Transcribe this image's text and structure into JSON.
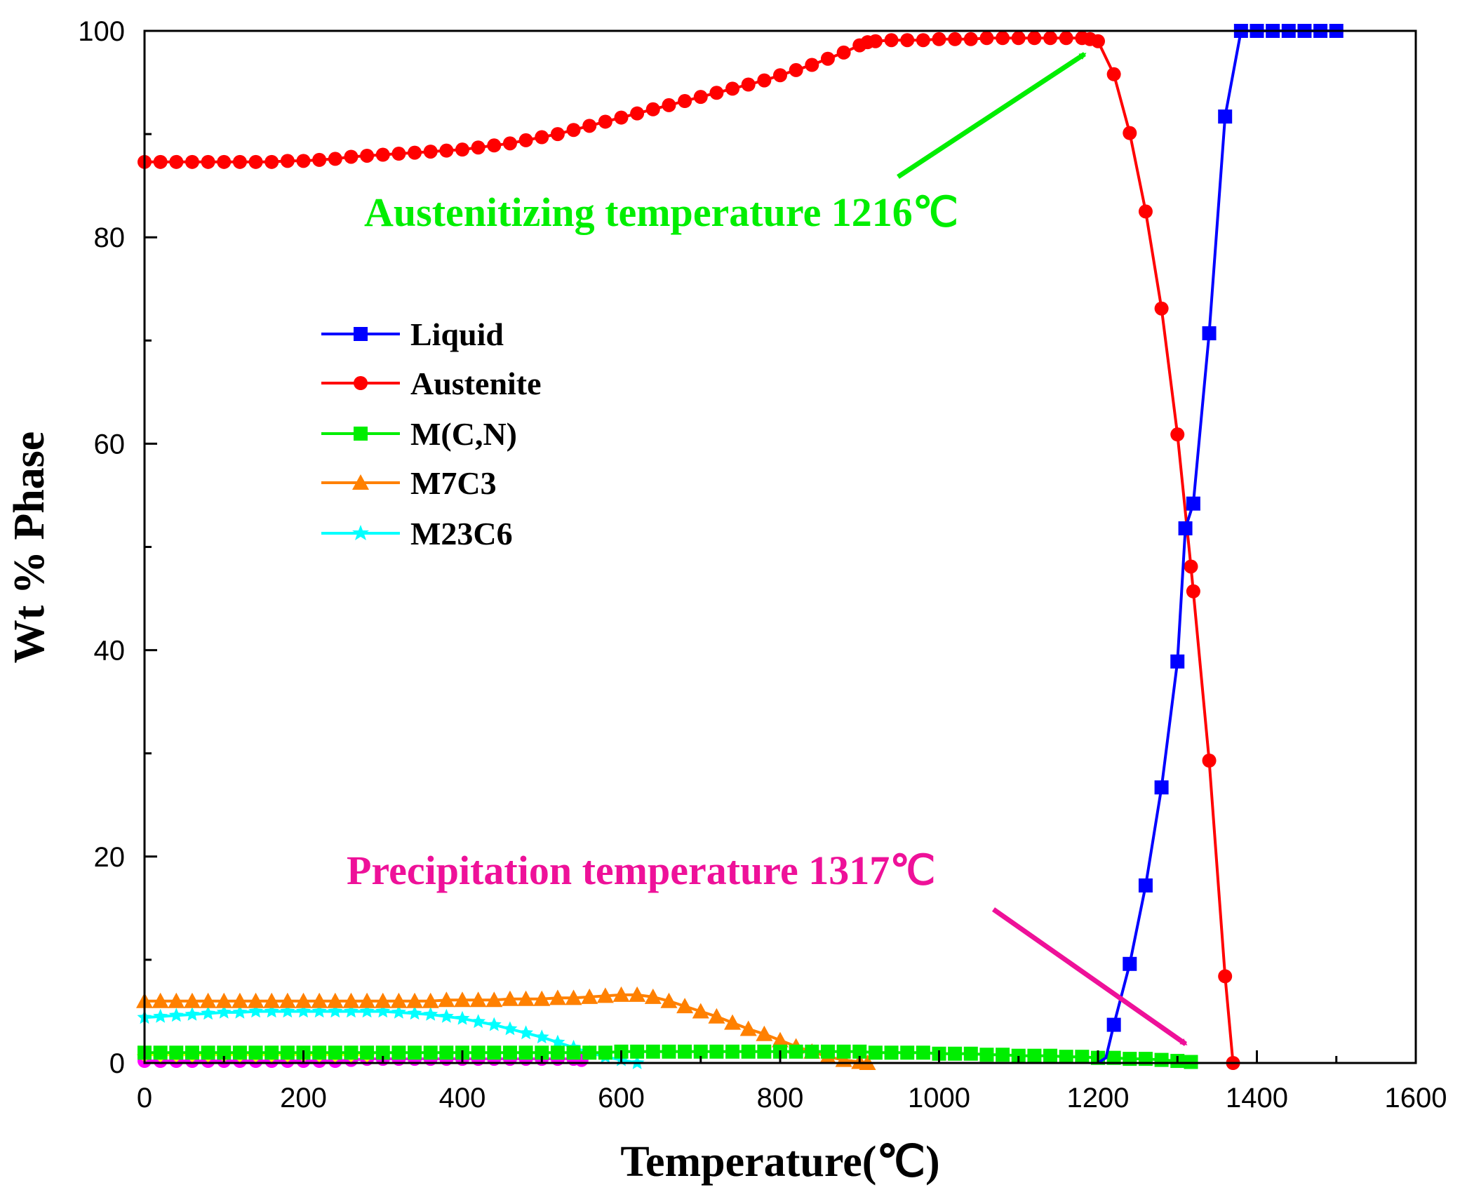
{
  "chart_data": {
    "type": "line",
    "title": "",
    "xlabel": "Temperature(℃)",
    "ylabel": "Wt % Phase",
    "xlim": [
      0,
      1600
    ],
    "ylim": [
      0,
      100
    ],
    "xticks": [
      "0",
      "200",
      "400",
      "600",
      "800",
      "1000",
      "1200",
      "1400",
      "1600"
    ],
    "yticks": [
      "0",
      "20",
      "40",
      "60",
      "80",
      "100"
    ],
    "legend_position": "middle-left",
    "series": [
      {
        "name": "Liquid",
        "color": "#0000ff",
        "marker": "square",
        "x": [
          1200,
          1210,
          1220,
          1240,
          1260,
          1280,
          1300,
          1310,
          1320,
          1340,
          1360,
          1380,
          1400,
          1420,
          1440,
          1460,
          1480,
          1500
        ],
        "y": [
          0,
          0.5,
          3.7,
          9.6,
          17.2,
          26.7,
          38.9,
          51.8,
          54.2,
          70.7,
          91.7,
          100,
          100,
          100,
          100,
          100,
          100,
          100
        ],
        "markers_from": 2
      },
      {
        "name": "Austenite",
        "color": "#ff0000",
        "marker": "circle",
        "x": [
          0,
          20,
          40,
          60,
          80,
          100,
          120,
          140,
          160,
          180,
          200,
          220,
          240,
          260,
          280,
          300,
          320,
          340,
          360,
          380,
          400,
          420,
          440,
          460,
          480,
          500,
          520,
          540,
          560,
          580,
          600,
          620,
          640,
          660,
          680,
          700,
          720,
          740,
          760,
          780,
          800,
          820,
          840,
          860,
          880,
          900,
          910,
          920,
          940,
          960,
          980,
          1000,
          1020,
          1040,
          1060,
          1080,
          1100,
          1120,
          1140,
          1160,
          1180,
          1190,
          1200,
          1220,
          1240,
          1260,
          1280,
          1300,
          1317,
          1320,
          1340,
          1360,
          1370
        ],
        "y": [
          87.3,
          87.3,
          87.3,
          87.3,
          87.3,
          87.3,
          87.3,
          87.3,
          87.3,
          87.4,
          87.4,
          87.5,
          87.6,
          87.8,
          87.9,
          88.0,
          88.1,
          88.2,
          88.3,
          88.4,
          88.5,
          88.7,
          88.9,
          89.1,
          89.4,
          89.7,
          90.0,
          90.4,
          90.8,
          91.2,
          91.6,
          92.0,
          92.4,
          92.8,
          93.2,
          93.6,
          94.0,
          94.4,
          94.8,
          95.2,
          95.7,
          96.2,
          96.7,
          97.3,
          97.9,
          98.6,
          98.9,
          99.0,
          99.1,
          99.1,
          99.1,
          99.2,
          99.2,
          99.2,
          99.3,
          99.3,
          99.3,
          99.3,
          99.3,
          99.3,
          99.3,
          99.2,
          99.0,
          95.8,
          90.1,
          82.5,
          73.1,
          60.9,
          48.1,
          45.7,
          29.3,
          8.4,
          0
        ],
        "markers_from": 0
      },
      {
        "name": "M(C,N)",
        "color": "#00ee00",
        "marker": "square",
        "x": [
          0,
          20,
          40,
          60,
          80,
          100,
          120,
          140,
          160,
          180,
          200,
          220,
          240,
          260,
          280,
          300,
          320,
          340,
          360,
          380,
          400,
          420,
          440,
          460,
          480,
          500,
          520,
          540,
          560,
          580,
          600,
          620,
          640,
          660,
          680,
          700,
          720,
          740,
          760,
          780,
          800,
          820,
          840,
          860,
          880,
          900,
          920,
          940,
          960,
          980,
          1000,
          1020,
          1040,
          1060,
          1080,
          1100,
          1120,
          1140,
          1160,
          1180,
          1200,
          1220,
          1240,
          1260,
          1280,
          1300,
          1317
        ],
        "y": [
          1.0,
          1.0,
          1.0,
          1.0,
          1.0,
          1.0,
          1.0,
          1.0,
          1.0,
          1.0,
          1.0,
          1.0,
          1.0,
          1.0,
          1.0,
          1.0,
          1.0,
          1.0,
          1.0,
          1.0,
          1.0,
          1.0,
          1.0,
          1.0,
          1.0,
          1.0,
          1.0,
          1.0,
          1.0,
          1.0,
          1.1,
          1.1,
          1.1,
          1.1,
          1.1,
          1.1,
          1.1,
          1.1,
          1.1,
          1.1,
          1.1,
          1.1,
          1.1,
          1.1,
          1.1,
          1.1,
          1.0,
          1.0,
          1.0,
          1.0,
          0.9,
          0.9,
          0.9,
          0.8,
          0.8,
          0.7,
          0.7,
          0.7,
          0.6,
          0.6,
          0.5,
          0.5,
          0.4,
          0.4,
          0.3,
          0.2,
          0.1
        ],
        "markers_from": 0
      },
      {
        "name": "M7C3",
        "color": "#ff8000",
        "marker": "triangle",
        "x": [
          0,
          20,
          40,
          60,
          80,
          100,
          120,
          140,
          160,
          180,
          200,
          220,
          240,
          260,
          280,
          300,
          320,
          340,
          360,
          380,
          400,
          420,
          440,
          460,
          480,
          500,
          520,
          540,
          560,
          580,
          600,
          620,
          640,
          660,
          680,
          700,
          720,
          740,
          760,
          780,
          800,
          820,
          840,
          860,
          880,
          900,
          910
        ],
        "y": [
          6.0,
          6.0,
          6.0,
          6.0,
          6.0,
          6.0,
          6.0,
          6.0,
          6.0,
          6.0,
          6.0,
          6.0,
          6.0,
          6.0,
          6.0,
          6.0,
          6.0,
          6.0,
          6.0,
          6.1,
          6.1,
          6.1,
          6.1,
          6.2,
          6.2,
          6.2,
          6.3,
          6.3,
          6.4,
          6.5,
          6.6,
          6.6,
          6.4,
          6.0,
          5.5,
          5.0,
          4.5,
          3.9,
          3.3,
          2.8,
          2.2,
          1.6,
          1.1,
          0.6,
          0.3,
          0.1,
          0
        ],
        "markers_from": 0
      },
      {
        "name": "M23C6",
        "color": "#00ffff",
        "marker": "star",
        "x": [
          0,
          20,
          40,
          60,
          80,
          100,
          120,
          140,
          160,
          180,
          200,
          220,
          240,
          260,
          280,
          300,
          320,
          340,
          360,
          380,
          400,
          420,
          440,
          460,
          480,
          500,
          520,
          540,
          560,
          580,
          600,
          620
        ],
        "y": [
          4.4,
          4.5,
          4.6,
          4.7,
          4.8,
          4.9,
          4.9,
          5.0,
          5.0,
          5.0,
          5.0,
          5.0,
          5.0,
          5.0,
          5.0,
          5.0,
          4.9,
          4.8,
          4.7,
          4.5,
          4.3,
          4.0,
          3.7,
          3.3,
          2.9,
          2.5,
          2.0,
          1.5,
          1.0,
          0.6,
          0.3,
          0
        ],
        "markers_from": 0
      },
      {
        "name": "",
        "color": "#ffff00",
        "marker": "diamond",
        "in_legend": false,
        "x": [
          0,
          20,
          40,
          60,
          80,
          100,
          120,
          140,
          160,
          180,
          200,
          220,
          240,
          260,
          280
        ],
        "y": [
          0.8,
          0.8,
          0.8,
          0.8,
          0.8,
          0.8,
          0.8,
          0.8,
          0.8,
          0.8,
          0.8,
          0.8,
          0.8,
          0.8,
          0.8
        ],
        "markers_from": 0
      },
      {
        "name": "",
        "color": "#ff00ff",
        "marker": "circle",
        "in_legend": false,
        "x": [
          0,
          20,
          40,
          60,
          80,
          100,
          120,
          140,
          160,
          180,
          200,
          220,
          240,
          260,
          280,
          300,
          320,
          340,
          360,
          380,
          400,
          420,
          440,
          460,
          480,
          500,
          520,
          540,
          550
        ],
        "y": [
          0.2,
          0.2,
          0.2,
          0.2,
          0.2,
          0.2,
          0.2,
          0.2,
          0.2,
          0.2,
          0.2,
          0.2,
          0.2,
          0.3,
          0.4,
          0.4,
          0.4,
          0.4,
          0.4,
          0.4,
          0.4,
          0.4,
          0.4,
          0.4,
          0.4,
          0.4,
          0.4,
          0.4,
          0.3
        ],
        "markers_from": 0
      }
    ],
    "annotations": [
      {
        "text": "Austenitizing temperature 1216℃",
        "color": "#00ee00",
        "x": 1216,
        "y": 99.3
      },
      {
        "text": "Precipitation temperature 1317℃",
        "color": "#ee1199",
        "x": 1317,
        "y": 1.5
      }
    ]
  }
}
